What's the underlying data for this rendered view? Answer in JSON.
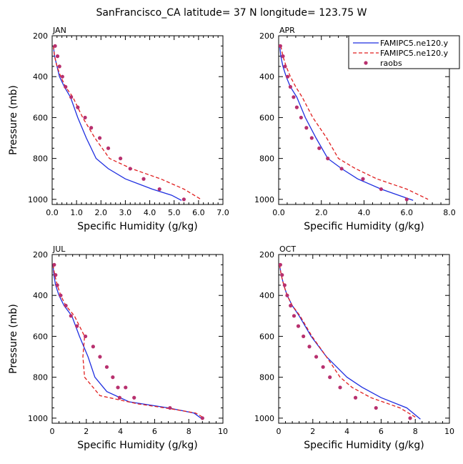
{
  "title": "SanFrancisco_CA  latitude= 37 N longitude= 123.75 W",
  "colors": {
    "model_a": "#1f2fe0",
    "model_b": "#e01f1f",
    "raobs": "#b8306e"
  },
  "legend": {
    "entries": [
      {
        "label": "FAMIPC5.ne120.y",
        "style": "solid",
        "color": "#1f2fe0"
      },
      {
        "label": "FAMIPC5.ne120.y",
        "style": "dashed",
        "color": "#e01f1f"
      },
      {
        "label": "raobs",
        "style": "marker",
        "color": "#b8306e"
      }
    ]
  },
  "chart_data": [
    {
      "type": "line",
      "panel": "JAN",
      "xlabel": "Specific Humidity (g/kg)",
      "ylabel": "Pressure (mb)",
      "xlim": [
        0,
        7
      ],
      "ylim": [
        200,
        1025
      ],
      "xticks": [
        "0.0",
        "1.0",
        "2.0",
        "3.0",
        "4.0",
        "5.0",
        "6.0",
        "7.0"
      ],
      "xtick_values": [
        0,
        1,
        2,
        3,
        4,
        5,
        6,
        7
      ],
      "yticks": [
        "200",
        "400",
        "600",
        "800",
        "1000"
      ],
      "y_reversed": true,
      "series": [
        {
          "name": "FAMIPC5.ne120.y",
          "style": "solid",
          "x": [
            0.05,
            0.1,
            0.2,
            0.3,
            0.5,
            0.75,
            1.05,
            1.4,
            1.8,
            2.3,
            3.0,
            4.1,
            4.9,
            5.3
          ],
          "y": [
            250,
            300,
            350,
            400,
            450,
            500,
            600,
            700,
            800,
            850,
            900,
            950,
            980,
            1005
          ]
        },
        {
          "name": "FAMIPC5.ne120.y",
          "style": "dashed",
          "x": [
            0.05,
            0.1,
            0.2,
            0.35,
            0.55,
            0.85,
            1.25,
            1.75,
            2.35,
            3.25,
            4.45,
            5.4,
            6.1
          ],
          "y": [
            250,
            300,
            350,
            400,
            450,
            500,
            600,
            700,
            800,
            850,
            900,
            950,
            1000
          ]
        },
        {
          "name": "raobs",
          "style": "marker",
          "x": [
            0.12,
            0.22,
            0.3,
            0.42,
            0.55,
            0.78,
            1.05,
            1.35,
            1.6,
            1.95,
            2.3,
            2.8,
            3.2,
            3.75,
            4.4,
            5.4
          ],
          "y": [
            250,
            300,
            350,
            400,
            450,
            500,
            550,
            600,
            650,
            700,
            750,
            800,
            850,
            900,
            950,
            1000
          ]
        }
      ]
    },
    {
      "type": "line",
      "panel": "APR",
      "xlabel": "Specific Humidity (g/kg)",
      "ylabel": "",
      "xlim": [
        0,
        8
      ],
      "ylim": [
        200,
        1025
      ],
      "xticks": [
        "0.0",
        "2.0",
        "4.0",
        "6.0",
        "8.0"
      ],
      "xtick_values": [
        0,
        2,
        4,
        6,
        8
      ],
      "yticks": [
        "200",
        "400",
        "600",
        "800",
        "1000"
      ],
      "y_reversed": true,
      "series": [
        {
          "name": "FAMIPC5.ne120.y",
          "style": "solid",
          "x": [
            0.05,
            0.1,
            0.2,
            0.35,
            0.55,
            0.85,
            1.25,
            1.75,
            2.3,
            2.95,
            3.7,
            4.8,
            6.3
          ],
          "y": [
            250,
            300,
            350,
            400,
            450,
            500,
            600,
            700,
            800,
            850,
            900,
            950,
            1005
          ]
        },
        {
          "name": "FAMIPC5.ne120.y",
          "style": "dashed",
          "x": [
            0.1,
            0.2,
            0.35,
            0.55,
            0.8,
            1.1,
            1.6,
            2.25,
            2.8,
            3.6,
            4.6,
            6.0,
            7.0
          ],
          "y": [
            250,
            300,
            350,
            400,
            450,
            500,
            600,
            700,
            800,
            850,
            900,
            950,
            1000
          ]
        },
        {
          "name": "raobs",
          "style": "marker",
          "x": [
            0.08,
            0.2,
            0.3,
            0.42,
            0.55,
            0.7,
            0.85,
            1.05,
            1.3,
            1.55,
            1.9,
            2.3,
            2.95,
            3.95,
            4.8,
            6.0
          ],
          "y": [
            250,
            300,
            350,
            400,
            450,
            500,
            550,
            600,
            650,
            700,
            750,
            800,
            850,
            900,
            950,
            1000
          ]
        }
      ]
    },
    {
      "type": "line",
      "panel": "JUL",
      "xlabel": "Specific Humidity (g/kg)",
      "ylabel": "Pressure (mb)",
      "xlim": [
        0,
        10
      ],
      "ylim": [
        200,
        1025
      ],
      "xticks": [
        "0",
        "2",
        "4",
        "6",
        "8",
        "10"
      ],
      "xtick_values": [
        0,
        2,
        4,
        6,
        8,
        10
      ],
      "yticks": [
        "200",
        "400",
        "600",
        "800",
        "1000"
      ],
      "y_reversed": true,
      "series": [
        {
          "name": "FAMIPC5.ne120.y",
          "style": "solid",
          "x": [
            0.05,
            0.1,
            0.2,
            0.4,
            0.7,
            1.15,
            1.6,
            2.1,
            2.5,
            3.2,
            4.5,
            6.8,
            8.3,
            8.8
          ],
          "y": [
            250,
            300,
            350,
            400,
            450,
            500,
            600,
            700,
            800,
            870,
            920,
            950,
            975,
            1005
          ]
        },
        {
          "name": "FAMIPC5.ne120.y",
          "style": "dashed",
          "x": [
            0.05,
            0.15,
            0.3,
            0.5,
            0.8,
            1.3,
            1.9,
            1.8,
            1.9,
            2.8,
            5.0,
            7.0,
            8.4,
            8.9
          ],
          "y": [
            250,
            300,
            350,
            400,
            450,
            500,
            600,
            700,
            800,
            890,
            930,
            955,
            975,
            1000
          ]
        },
        {
          "name": "raobs",
          "style": "marker",
          "x": [
            0.12,
            0.2,
            0.3,
            0.5,
            0.8,
            1.1,
            1.45,
            1.95,
            2.4,
            2.8,
            3.2,
            3.55,
            3.85,
            3.95,
            4.3,
            4.8,
            6.9,
            8.8
          ],
          "y": [
            250,
            300,
            350,
            400,
            450,
            500,
            550,
            600,
            650,
            700,
            750,
            800,
            850,
            900,
            850,
            900,
            950,
            1000
          ]
        }
      ]
    },
    {
      "type": "line",
      "panel": "OCT",
      "xlabel": "Specific Humidity (g/kg)",
      "ylabel": "",
      "xlim": [
        0,
        10
      ],
      "ylim": [
        200,
        1025
      ],
      "xticks": [
        "0",
        "2",
        "4",
        "6",
        "8",
        "10"
      ],
      "xtick_values": [
        0,
        2,
        4,
        6,
        8,
        10
      ],
      "yticks": [
        "200",
        "400",
        "600",
        "800",
        "1000"
      ],
      "y_reversed": true,
      "series": [
        {
          "name": "FAMIPC5.ne120.y",
          "style": "solid",
          "x": [
            0.05,
            0.15,
            0.3,
            0.5,
            0.8,
            1.2,
            1.9,
            2.8,
            4.0,
            4.9,
            6.0,
            7.5,
            8.3
          ],
          "y": [
            250,
            300,
            350,
            400,
            450,
            500,
            600,
            700,
            800,
            850,
            900,
            950,
            1005
          ]
        },
        {
          "name": "FAMIPC5.ne120.y",
          "style": "dashed",
          "x": [
            0.05,
            0.15,
            0.3,
            0.5,
            0.8,
            1.25,
            1.95,
            2.8,
            3.6,
            4.3,
            5.4,
            7.1,
            8.0
          ],
          "y": [
            250,
            300,
            350,
            400,
            450,
            500,
            600,
            700,
            800,
            850,
            900,
            950,
            995
          ]
        },
        {
          "name": "raobs",
          "style": "marker",
          "x": [
            0.1,
            0.2,
            0.35,
            0.5,
            0.7,
            0.9,
            1.15,
            1.45,
            1.8,
            2.2,
            2.6,
            3.0,
            3.6,
            4.5,
            5.7,
            7.7
          ],
          "y": [
            250,
            300,
            350,
            400,
            450,
            500,
            550,
            600,
            650,
            700,
            750,
            800,
            850,
            900,
            950,
            1000
          ]
        }
      ]
    }
  ]
}
